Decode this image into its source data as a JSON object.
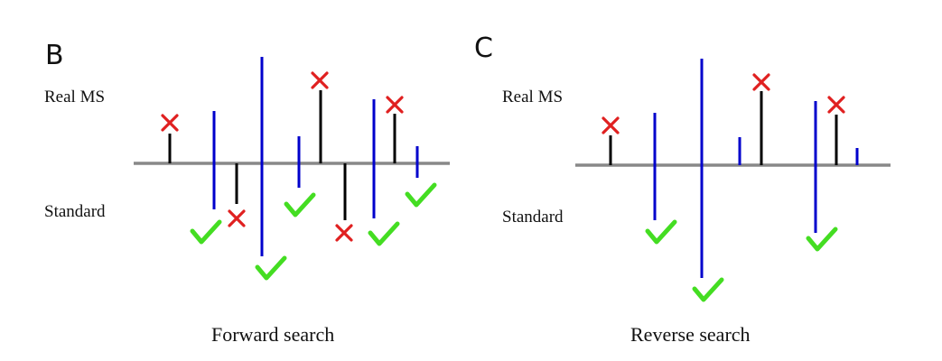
{
  "panels": {
    "B": {
      "letter": "B",
      "real_label": "Real MS",
      "standard_label": "Standard",
      "caption": "Forward search"
    },
    "C": {
      "letter": "C",
      "real_label": "Real MS",
      "standard_label": "Standard",
      "caption": "Reverse search"
    }
  },
  "colors": {
    "baseline": "#888888",
    "real_peak": "#000000",
    "standard_peak": "#0000cc",
    "cross": "#e02020",
    "check": "#44dd22"
  }
}
